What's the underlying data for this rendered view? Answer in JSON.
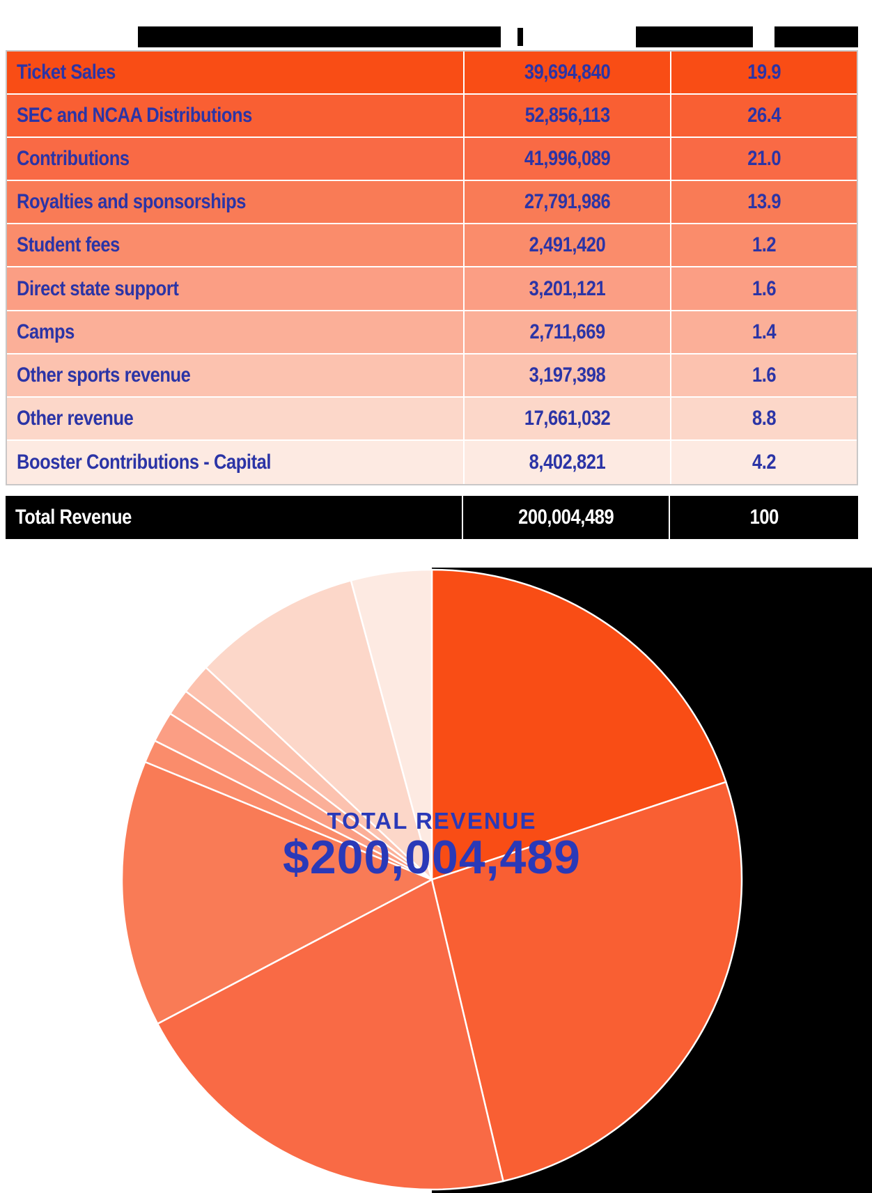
{
  "colors": {
    "page_bg": "#FFFFFF",
    "redaction_black": "#000000",
    "table_border": "#C9C7C7",
    "row_divider": "#FFFFFF",
    "table_text_blue": "#2B34A6",
    "total_row_bg": "#000000",
    "total_row_text": "#FFFFFF",
    "center_text_blue": "#2A39B8"
  },
  "header": {
    "pipe_glyph": "|"
  },
  "table": {
    "total": {
      "label": "Total Revenue",
      "amount": "200,004,489",
      "percent": "100"
    }
  },
  "pie": {
    "center_label": "TOTAL REVENUE",
    "center_value": "$200,004,489"
  },
  "chart_data": {
    "type": "pie",
    "title": "",
    "center_label": "TOTAL REVENUE",
    "center_value_display": "$200,004,489",
    "total": 200004489,
    "start_angle_deg_from_12_clockwise": 0,
    "legend_position": "none",
    "slices": [
      {
        "key": "ticket-sales",
        "label": "Ticket Sales",
        "amount": "39,694,840",
        "value": 39694840,
        "percent": 19.9,
        "percent_display": "19.9",
        "color": "#F94D15"
      },
      {
        "key": "sec-and-ncaa-distributions",
        "label": "SEC and NCAA Distributions",
        "amount": "52,856,113",
        "value": 52856113,
        "percent": 26.4,
        "percent_display": "26.4",
        "color": "#F95F33"
      },
      {
        "key": "contributions",
        "label": "Contributions",
        "amount": "41,996,089",
        "value": 41996089,
        "percent": 21.0,
        "percent_display": "21.0",
        "color": "#F96A45"
      },
      {
        "key": "royalties-and-sponsorships",
        "label": "Royalties and sponsorships",
        "amount": "27,791,986",
        "value": 27791986,
        "percent": 13.9,
        "percent_display": "13.9",
        "color": "#F97B56"
      },
      {
        "key": "student-fees",
        "label": "Student fees",
        "amount": "2,491,420",
        "value": 2491420,
        "percent": 1.2,
        "percent_display": "1.2",
        "color": "#FA8C6B"
      },
      {
        "key": "direct-state-support",
        "label": "Direct state support",
        "amount": "3,201,121",
        "value": 3201121,
        "percent": 1.6,
        "percent_display": "1.6",
        "color": "#FB9E84"
      },
      {
        "key": "camps",
        "label": "Camps",
        "amount": "2,711,669",
        "value": 2711669,
        "percent": 1.4,
        "percent_display": "1.4",
        "color": "#FBAF98"
      },
      {
        "key": "other-sports-revenue",
        "label": "Other sports revenue",
        "amount": "3,197,398",
        "value": 3197398,
        "percent": 1.6,
        "percent_display": "1.6",
        "color": "#FCC2AF"
      },
      {
        "key": "other-revenue",
        "label": "Other revenue",
        "amount": "17,661,032",
        "value": 17661032,
        "percent": 8.8,
        "percent_display": "8.8",
        "color": "#FCD7C9"
      },
      {
        "key": "booster-contributions-capital",
        "label": "Booster Contributions - Capital",
        "amount": "8,402,821",
        "value": 8402821,
        "percent": 4.2,
        "percent_display": "4.2",
        "color": "#FDEAE2"
      }
    ]
  }
}
